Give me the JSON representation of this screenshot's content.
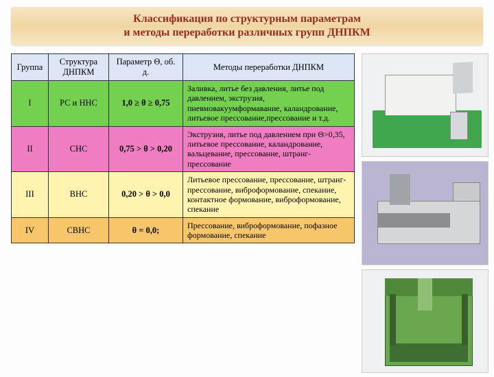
{
  "header": {
    "line1": "Классификация по структурным параметрам",
    "line2": "и методы переработки различных групп ДНПКМ"
  },
  "table": {
    "columns": {
      "group": "Группа",
      "struct": "Структура ДНПКМ",
      "param": "Параметр Θ, об. д.",
      "methods": "Методы переработки ДНПКМ"
    },
    "rows": [
      {
        "group": "I",
        "struct": "РС  и ННС",
        "param": "1,0 ≥ θ ≥ 0,75",
        "methods": "Заливка, литье без давления, литье под давлением, экструзия, пневмовакуумформавание, каландрование, литьевое прессование,прессование и т.д.",
        "bg": "#74d150"
      },
      {
        "group": "II",
        "struct": "СНС",
        "param": "0,75 > θ > 0,20",
        "methods": "Экструзия, литье под давлением при Θ>0,35, литьевое прессование, каландрование, вальцевание, прессование, штранг-прессование",
        "bg": "#f07dc2"
      },
      {
        "group": "III",
        "struct": "ВНС",
        "param": "0,20 > θ > 0,0",
        "methods": "Литьевое прессование, прессование, штранг-прессование, виброформование, спекание, контактное формование, виброформование, спекание",
        "bg": "#fff3b0"
      },
      {
        "group": "IV",
        "struct": "СВНС",
        "param": "θ = 0,0;",
        "methods": "Прессование, виброформование, пофазное формование, спекание",
        "bg": "#f7c66b"
      }
    ]
  },
  "images": [
    {
      "name": "injection-molding-machine"
    },
    {
      "name": "extruder-machine"
    },
    {
      "name": "hydraulic-press"
    }
  ]
}
